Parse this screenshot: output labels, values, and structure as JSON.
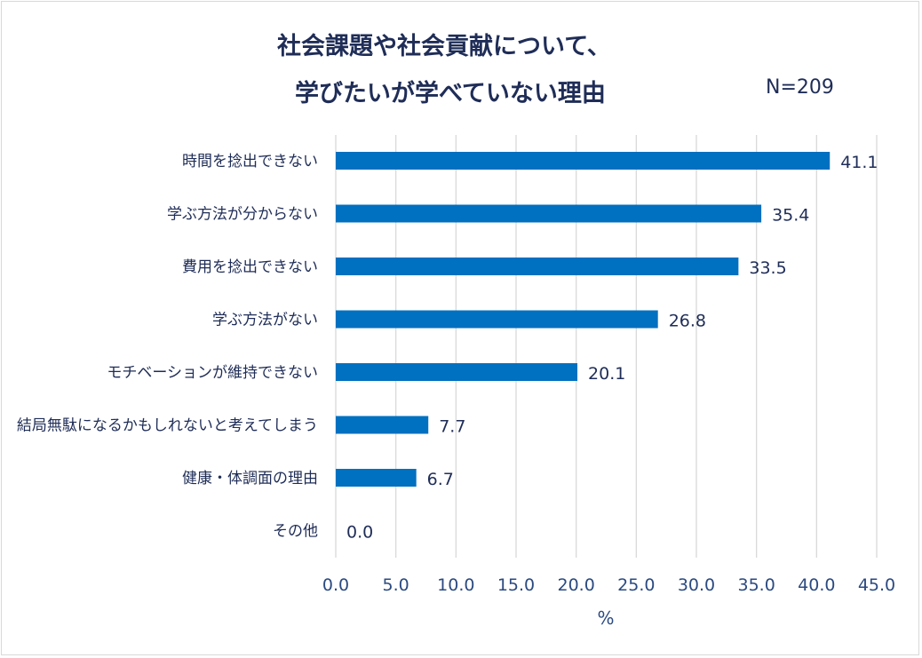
{
  "chart_data": {
    "type": "bar",
    "orientation": "horizontal",
    "title_lines": [
      "社会課題や社会貢献について、",
      "学びたいが学べていない理由"
    ],
    "sample_size": "N=209",
    "categories": [
      "時間を捻出できない",
      "学ぶ方法が分からない",
      "費用を捻出できない",
      "学ぶ方法がない",
      "モチベーションが維持できない",
      "結局無駄になるかもしれないと考えてしまう",
      "健康・体調面の理由",
      "その他"
    ],
    "values": [
      41.1,
      35.4,
      33.5,
      26.8,
      20.1,
      7.7,
      6.7,
      0.0
    ],
    "value_labels": [
      "41.1",
      "35.4",
      "33.5",
      "26.8",
      "20.1",
      "7.7",
      "6.7",
      "0.0"
    ],
    "xlim": [
      0,
      45
    ],
    "xticks": [
      "0.0",
      "5.0",
      "10.0",
      "15.0",
      "20.0",
      "25.0",
      "30.0",
      "35.0",
      "40.0",
      "45.0"
    ],
    "xlabel": "%",
    "grid": true,
    "bar_color": "#0070c0",
    "grid_color": "#d9d9d9"
  }
}
